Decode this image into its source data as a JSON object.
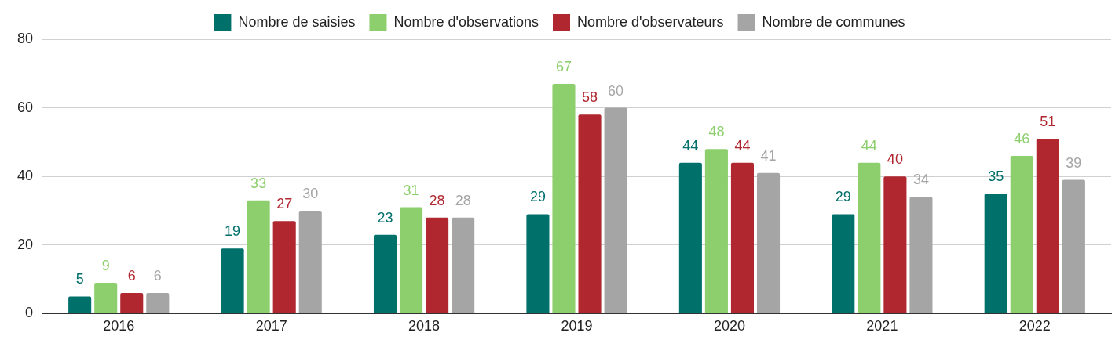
{
  "chart_data": {
    "type": "bar",
    "categories": [
      "2016",
      "2017",
      "2018",
      "2019",
      "2020",
      "2021",
      "2022"
    ],
    "series": [
      {
        "name": "Nombre de saisies",
        "color": "#00706b",
        "values": [
          5,
          19,
          23,
          29,
          44,
          29,
          35
        ]
      },
      {
        "name": "Nombre d'observations",
        "color": "#8ccf6c",
        "values": [
          9,
          33,
          31,
          67,
          48,
          44,
          46
        ]
      },
      {
        "name": "Nombre d'observateurs",
        "color": "#b0272f",
        "values": [
          6,
          27,
          28,
          58,
          44,
          40,
          51
        ]
      },
      {
        "name": "Nombre de communes",
        "color": "#a5a5a5",
        "values": [
          6,
          30,
          28,
          60,
          41,
          34,
          39
        ]
      }
    ],
    "ylim": [
      0,
      80
    ],
    "yticks": [
      0,
      20,
      40,
      60,
      80
    ],
    "grid": "y",
    "legend": "top",
    "data_labels": true
  }
}
